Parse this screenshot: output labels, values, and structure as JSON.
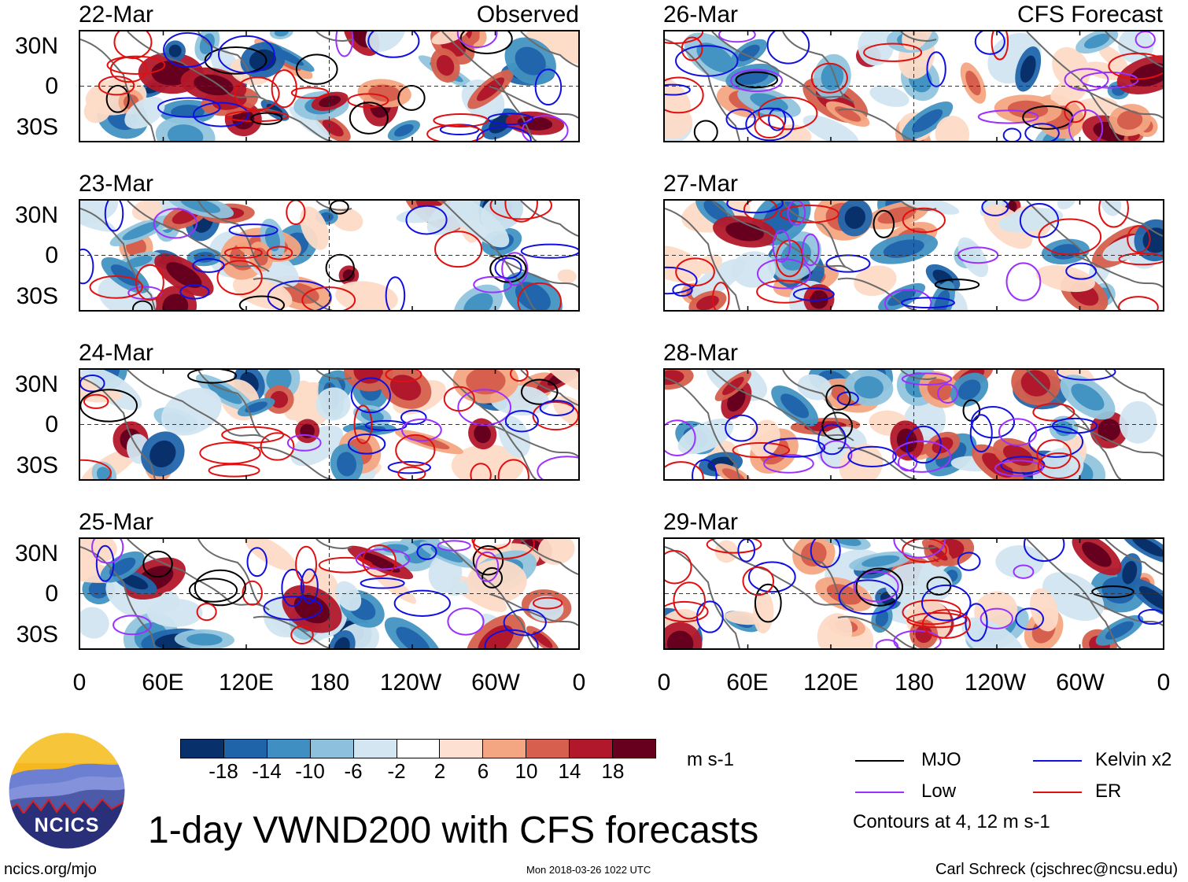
{
  "panels": {
    "observed_tag": "Observed",
    "forecast_tag": "CFS Forecast",
    "left_dates": [
      "22-Mar",
      "23-Mar",
      "24-Mar",
      "25-Mar"
    ],
    "right_dates": [
      "26-Mar",
      "27-Mar",
      "28-Mar",
      "29-Mar"
    ]
  },
  "axes": {
    "lat_labels": [
      "30N",
      "0",
      "30S"
    ],
    "lon_labels": [
      "0",
      "60E",
      "120E",
      "180",
      "120W",
      "60W",
      "0"
    ]
  },
  "colorbar": {
    "unit": "m s-1",
    "tick_labels": [
      "-18",
      "-14",
      "-10",
      "-6",
      "-2",
      "2",
      "6",
      "10",
      "14",
      "18"
    ],
    "colors": [
      "#08306b",
      "#1f63a8",
      "#3f8fc2",
      "#8cc0dc",
      "#d3e6f1",
      "#ffffff",
      "#fde0d1",
      "#f4a582",
      "#d6604d",
      "#b2182b",
      "#67001f"
    ]
  },
  "legend": {
    "items": [
      {
        "label": "MJO",
        "color": "#000000"
      },
      {
        "label": "Kelvin x2",
        "color": "#1010e0"
      },
      {
        "label": "Low",
        "color": "#9b30ff"
      },
      {
        "label": "ER",
        "color": "#e01010"
      }
    ],
    "note": "Contours at 4, 12 m s-1"
  },
  "title": "1-day VWND200 with CFS forecasts",
  "footer": {
    "site": "ncics.org/mjo",
    "timestamp": "Mon 2018-03-26 1022 UTC",
    "author": "Carl Schreck (cjschrec@ncsu.edu)"
  },
  "logo": {
    "text": "NCICS"
  }
}
